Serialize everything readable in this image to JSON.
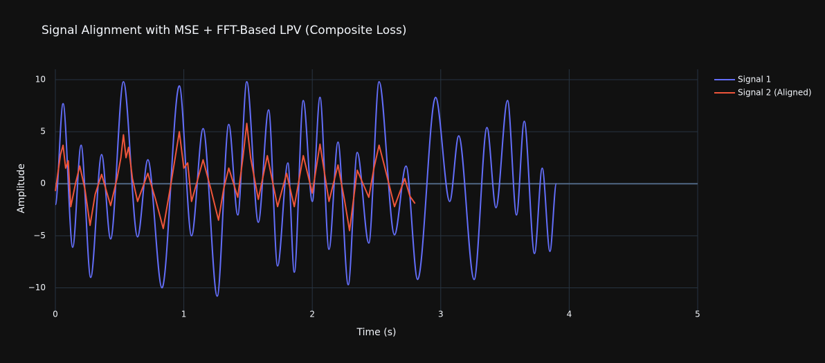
{
  "chart_data": {
    "type": "line",
    "title": "Signal Alignment with MSE + FFT-Based LPV (Composite Loss)",
    "x_label": "Time (s)",
    "y_label": "Amplitude",
    "xlim": [
      0,
      5
    ],
    "xticks": [
      0,
      1,
      2,
      3,
      4,
      5
    ],
    "ylim": [
      -12.3,
      11
    ],
    "yticks": [
      {
        "value": -10,
        "label": "−10"
      },
      {
        "value": -5,
        "label": "−5"
      },
      0,
      5,
      10
    ],
    "grid": true,
    "legend": "top-right",
    "series": [
      {
        "name": "Signal 1",
        "color": "#636efa",
        "x": [
          0,
          0.06,
          0.135,
          0.2,
          0.275,
          0.36,
          0.43,
          0.53,
          0.64,
          0.72,
          0.83,
          0.965,
          1.06,
          1.15,
          1.26,
          1.35,
          1.42,
          1.49,
          1.58,
          1.66,
          1.73,
          1.81,
          1.86,
          1.93,
          2.0,
          2.06,
          2.13,
          2.2,
          2.28,
          2.35,
          2.44,
          2.52,
          2.64,
          2.73,
          2.82,
          2.96,
          3.07,
          3.14,
          3.26,
          3.36,
          3.43,
          3.52,
          3.59,
          3.65,
          3.73,
          3.79,
          3.85,
          3.9
        ],
        "values": [
          -2,
          7.7,
          -6.1,
          3.7,
          -9,
          2.8,
          -5.3,
          9.8,
          -5.1,
          2.3,
          -10,
          9.4,
          -5,
          5.3,
          -10.8,
          5.7,
          -3,
          9.8,
          -3.7,
          7.1,
          -7.9,
          2,
          -8.5,
          8,
          -1.7,
          8.3,
          -6.3,
          4,
          -9.7,
          3,
          -5.7,
          9.8,
          -4.9,
          1.7,
          -9.2,
          8.3,
          -1.7,
          4.6,
          -9.2,
          5.4,
          -2.3,
          8,
          -3,
          6,
          -6.7,
          1.5,
          -6.5,
          0
        ]
      },
      {
        "name": "Signal 2 (Aligned)",
        "color": "#ef553b",
        "x": [
          0,
          0.04,
          0.06,
          0.08,
          0.1,
          0.12,
          0.16,
          0.19,
          0.23,
          0.27,
          0.31,
          0.36,
          0.43,
          0.48,
          0.51,
          0.53,
          0.55,
          0.57,
          0.6,
          0.64,
          0.72,
          0.78,
          0.84,
          0.9,
          0.965,
          1.0,
          1.03,
          1.06,
          1.11,
          1.15,
          1.21,
          1.27,
          1.31,
          1.35,
          1.42,
          1.46,
          1.49,
          1.52,
          1.58,
          1.65,
          1.73,
          1.8,
          1.86,
          1.93,
          2.0,
          2.06,
          2.13,
          2.2,
          2.25,
          2.29,
          2.35,
          2.44,
          2.48,
          2.52,
          2.56,
          2.64,
          2.72,
          2.76,
          2.8
        ],
        "values": [
          -0.7,
          2.8,
          3.7,
          1.5,
          2.2,
          -2.2,
          0.2,
          1.7,
          -0.5,
          -4,
          -1,
          0.9,
          -2.1,
          0.5,
          2.5,
          4.7,
          2.5,
          3.5,
          0.5,
          -1.7,
          1,
          -1.5,
          -4.3,
          0,
          5,
          1.5,
          2,
          -1.7,
          0.5,
          2.3,
          -0.5,
          -3.5,
          -0.5,
          1.5,
          -1.3,
          2.5,
          5.8,
          2.5,
          -1.5,
          2.7,
          -2.2,
          1,
          -2.2,
          2.7,
          -0.9,
          3.8,
          -1.7,
          1.8,
          -1.5,
          -4.5,
          1.3,
          -1.3,
          1.5,
          3.7,
          1.8,
          -2.2,
          0.5,
          -1.2,
          -1.9
        ]
      }
    ]
  }
}
